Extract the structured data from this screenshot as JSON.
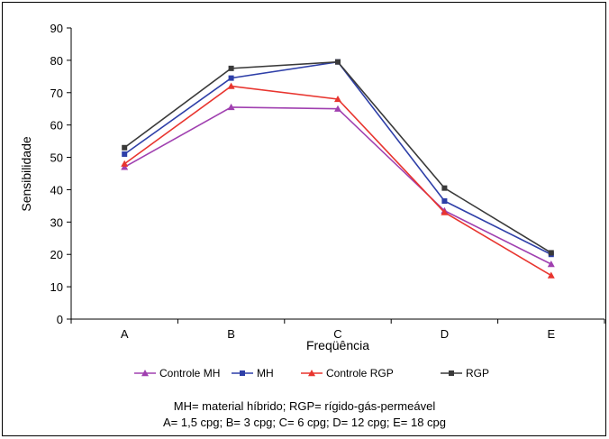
{
  "chart_data": {
    "type": "line",
    "ylabel": "Sensibilidade",
    "xlabel": "Freqüência",
    "categories": [
      "A",
      "B",
      "C",
      "D",
      "E"
    ],
    "ylim": [
      0,
      90
    ],
    "yticks": [
      0,
      10,
      20,
      30,
      40,
      50,
      60,
      70,
      80,
      90
    ],
    "grid": false,
    "legend_position": "bottom",
    "series": [
      {
        "name": "Controle MH",
        "color": "#a040b0",
        "marker": "triangle",
        "values": [
          47,
          65.5,
          65,
          33.5,
          17
        ]
      },
      {
        "name": "MH",
        "color": "#2e3fa8",
        "marker": "square",
        "values": [
          51,
          74.5,
          79.5,
          36.5,
          20
        ]
      },
      {
        "name": "Controle RGP",
        "color": "#e8352f",
        "marker": "triangle",
        "values": [
          48,
          72,
          68,
          33,
          13.5
        ]
      },
      {
        "name": "RGP",
        "color": "#3a3a3a",
        "marker": "square",
        "values": [
          53,
          77.5,
          79.5,
          40.5,
          20.5
        ]
      }
    ]
  },
  "caption": {
    "line1": "MH= material híbrido; RGP= rígido-gás-permeável",
    "line2": "A= 1,5 cpg; B= 3 cpg; C= 6 cpg; D= 12 cpg; E= 18 cpg"
  }
}
